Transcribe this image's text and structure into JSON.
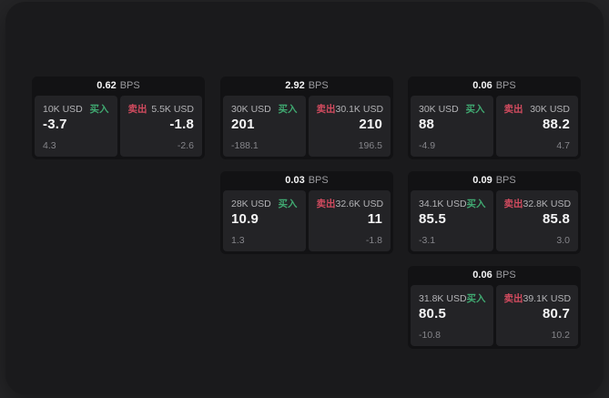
{
  "labels": {
    "buy": "买入",
    "sell": "卖出",
    "bps": "BPS"
  },
  "colors": {
    "buy": "#40a971",
    "sell": "#d24b5f",
    "background": "#252527",
    "panel": "#1a1a1c",
    "card": "#121214",
    "pane": "#232326"
  },
  "cards": [
    {
      "col": 0,
      "row": 0,
      "bps": "0.62",
      "buy": {
        "amount": "10K USD",
        "value": "-3.7",
        "delta": "4.3"
      },
      "sell": {
        "amount": "5.5K USD",
        "value": "-1.8",
        "delta": "-2.6"
      }
    },
    {
      "col": 1,
      "row": 0,
      "bps": "2.92",
      "buy": {
        "amount": "30K USD",
        "value": "201",
        "delta": "-188.1"
      },
      "sell": {
        "amount": "30.1K USD",
        "value": "210",
        "delta": "196.5"
      }
    },
    {
      "col": 2,
      "row": 0,
      "bps": "0.06",
      "buy": {
        "amount": "30K USD",
        "value": "88",
        "delta": "-4.9"
      },
      "sell": {
        "amount": "30K USD",
        "value": "88.2",
        "delta": "4.7"
      }
    },
    {
      "col": 1,
      "row": 1,
      "bps": "0.03",
      "buy": {
        "amount": "28K USD",
        "value": "10.9",
        "delta": "1.3"
      },
      "sell": {
        "amount": "32.6K USD",
        "value": "11",
        "delta": "-1.8"
      }
    },
    {
      "col": 2,
      "row": 1,
      "bps": "0.09",
      "buy": {
        "amount": "34.1K USD",
        "value": "85.5",
        "delta": "-3.1"
      },
      "sell": {
        "amount": "32.8K USD",
        "value": "85.8",
        "delta": "3.0"
      }
    },
    {
      "col": 2,
      "row": 2,
      "bps": "0.06",
      "buy": {
        "amount": "31.8K USD",
        "value": "80.5",
        "delta": "-10.8"
      },
      "sell": {
        "amount": "39.1K USD",
        "value": "80.7",
        "delta": "10.2"
      }
    }
  ]
}
